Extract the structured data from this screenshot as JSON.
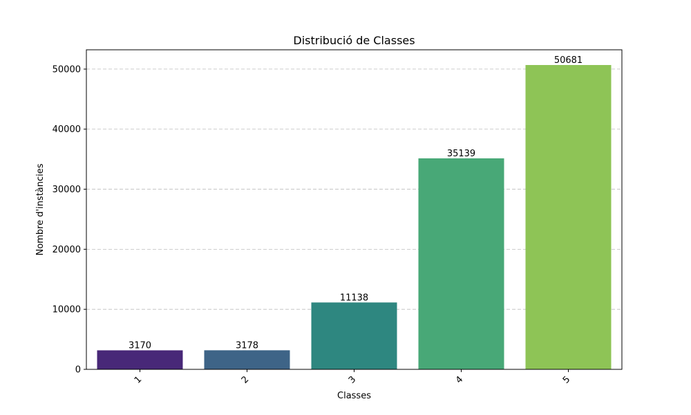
{
  "chart_data": {
    "type": "bar",
    "title": "Distribució de Classes",
    "xlabel": "Classes",
    "ylabel": "Nombre d'instàncies",
    "categories": [
      "1",
      "2",
      "3",
      "4",
      "5"
    ],
    "values": [
      3170,
      3178,
      11138,
      35139,
      50681
    ],
    "data_labels": [
      "3170",
      "3178",
      "11138",
      "35139",
      "50681"
    ],
    "colors": [
      "#482878",
      "#3e6487",
      "#2e8780",
      "#48a877",
      "#8ec456"
    ],
    "ylim": [
      0,
      53215
    ],
    "yticks": [
      0,
      10000,
      20000,
      30000,
      40000,
      50000
    ],
    "ytick_labels": [
      "0",
      "10000",
      "20000",
      "30000",
      "40000",
      "50000"
    ],
    "xtick_rotation": 45,
    "grid": "y-dashed",
    "legend": "none"
  }
}
